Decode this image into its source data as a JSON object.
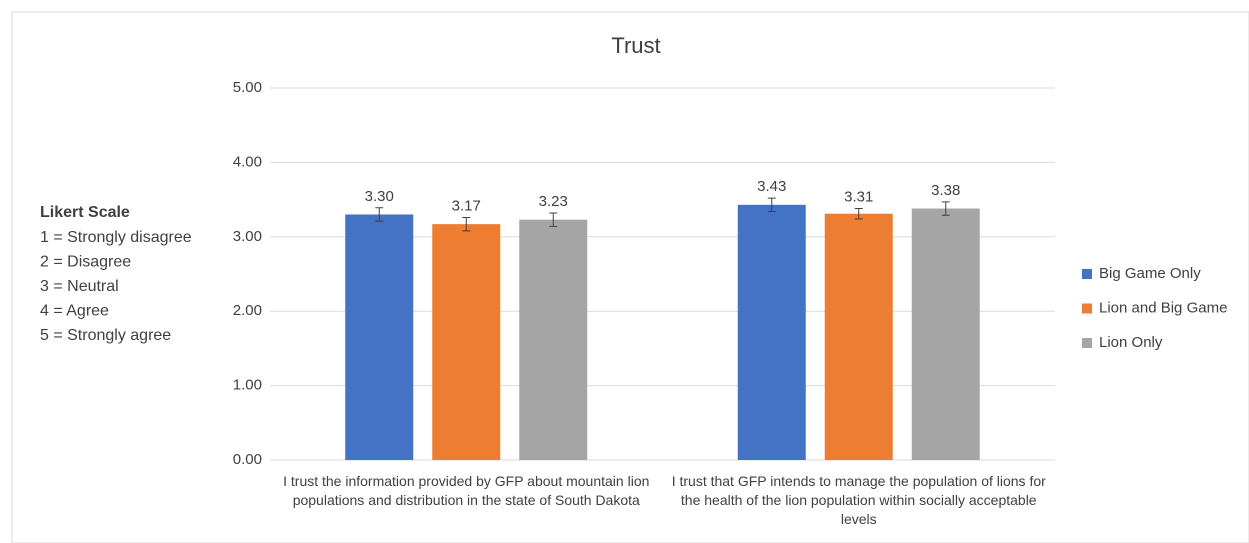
{
  "chart_data": {
    "type": "bar",
    "title": "Trust",
    "categories": [
      "I trust the information provided by GFP about mountain lion populations and distribution in the state of South Dakota",
      "I trust that GFP intends to manage the population of lions for the health of the lion population within socially acceptable levels"
    ],
    "series": [
      {
        "name": "Big Game Only",
        "color": "#4472c4",
        "values": [
          3.3,
          3.43
        ],
        "value_labels": [
          "3.30",
          "3.43"
        ],
        "errors": [
          0.09,
          0.09
        ]
      },
      {
        "name": "Lion and Big Game",
        "color": "#ed7d31",
        "values": [
          3.17,
          3.31
        ],
        "value_labels": [
          "3.17",
          "3.31"
        ],
        "errors": [
          0.09,
          0.07
        ]
      },
      {
        "name": "Lion Only",
        "color": "#a5a5a5",
        "values": [
          3.23,
          3.38
        ],
        "value_labels": [
          "3.23",
          "3.38"
        ],
        "errors": [
          0.09,
          0.09
        ]
      }
    ],
    "ylim": [
      0,
      5
    ],
    "yticks": [
      {
        "value": 0,
        "label": "0.00"
      },
      {
        "value": 1,
        "label": "1.00"
      },
      {
        "value": 2,
        "label": "2.00"
      },
      {
        "value": 3,
        "label": "3.00"
      },
      {
        "value": 4,
        "label": "4.00"
      },
      {
        "value": 5,
        "label": "5.00"
      }
    ],
    "grid": true,
    "legend": "right",
    "annotation": {
      "title": "Likert Scale",
      "lines": [
        "1 = Strongly disagree",
        "2 = Disagree",
        "3 = Neutral",
        "4 = Agree",
        "5 = Strongly agree"
      ]
    }
  }
}
